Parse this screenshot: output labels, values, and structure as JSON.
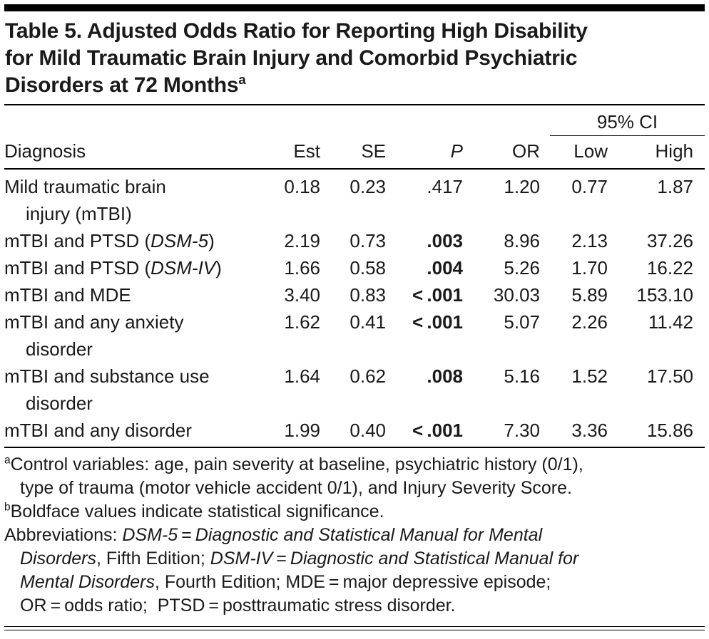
{
  "colors": {
    "rule": "#000000",
    "text": "#1a1a1a",
    "background": "#ffffff"
  },
  "table": {
    "title_segments": [
      {
        "t": "Table 5. Adjusted Odds Ratio for Reporting High Disability\nfor Mild Traumatic Brain Injury and Comorbid Psychiatric\nDisorders at 72 Months"
      },
      {
        "t": "a",
        "sup": true
      }
    ],
    "ci_spanner": "95% CI",
    "header": {
      "diagnosis": "Diagnosis",
      "est": "Est",
      "se": "SE",
      "p": "P",
      "or": "OR",
      "low": "Low",
      "high": "High"
    },
    "rows": [
      {
        "label": [
          {
            "t": "Mild traumatic brain\ninjury (mTBI)"
          }
        ],
        "est": "0.18",
        "se": "0.23",
        "p": {
          "t": ".417",
          "bold": false
        },
        "or": "1.20",
        "low": "0.77",
        "high": "1.87"
      },
      {
        "label": [
          {
            "t": "mTBI and PTSD ("
          },
          {
            "t": "DSM-5",
            "i": true
          },
          {
            "t": ")"
          }
        ],
        "est": "2.19",
        "se": "0.73",
        "p": {
          "t": ".003",
          "bold": true
        },
        "or": "8.96",
        "low": "2.13",
        "high": "37.26"
      },
      {
        "label": [
          {
            "t": "mTBI and PTSD ("
          },
          {
            "t": "DSM-IV",
            "i": true
          },
          {
            "t": ")"
          }
        ],
        "est": "1.66",
        "se": "0.58",
        "p": {
          "t": ".004",
          "bold": true
        },
        "or": "5.26",
        "low": "1.70",
        "high": "16.22"
      },
      {
        "label": [
          {
            "t": "mTBI and MDE"
          }
        ],
        "est": "3.40",
        "se": "0.83",
        "p": {
          "t": "< .001",
          "bold": true
        },
        "or": "30.03",
        "low": "5.89",
        "high": "153.10"
      },
      {
        "label": [
          {
            "t": "mTBI and any anxiety\ndisorder"
          }
        ],
        "est": "1.62",
        "se": "0.41",
        "p": {
          "t": "< .001",
          "bold": true
        },
        "or": "5.07",
        "low": "2.26",
        "high": "11.42"
      },
      {
        "label": [
          {
            "t": "mTBI and substance use\ndisorder"
          }
        ],
        "est": "1.64",
        "se": "0.62",
        "p": {
          "t": ".008",
          "bold": true
        },
        "or": "5.16",
        "low": "1.52",
        "high": "17.50"
      },
      {
        "label": [
          {
            "t": "mTBI and any disorder"
          }
        ],
        "est": "1.99",
        "se": "0.40",
        "p": {
          "t": "< .001",
          "bold": true
        },
        "or": "7.30",
        "low": "3.36",
        "high": "15.86"
      }
    ]
  },
  "footnotes": [
    {
      "sup": "a",
      "segments": [
        {
          "t": "Control variables: age, pain severity at baseline, psychiatric history (0/1),\ntype of trauma (motor vehicle accident 0/1), and Injury Severity Score."
        }
      ]
    },
    {
      "sup": "b",
      "segments": [
        {
          "t": "Boldface values indicate statistical significance."
        }
      ]
    },
    {
      "sup": "",
      "segments": [
        {
          "t": "Abbreviations: "
        },
        {
          "t": "DSM-5",
          "i": true
        },
        {
          "t": " = "
        },
        {
          "t": "Diagnostic and Statistical Manual for Mental\nDisorders",
          "i": true
        },
        {
          "t": ", Fifth Edition; "
        },
        {
          "t": "DSM-IV",
          "i": true
        },
        {
          "t": " = "
        },
        {
          "t": "Diagnostic and Statistical Manual for\nMental Disorders",
          "i": true
        },
        {
          "t": ", Fourth Edition; MDE = major depressive episode;\nOR = odds ratio;  PTSD = posttraumatic stress disorder."
        }
      ]
    }
  ]
}
